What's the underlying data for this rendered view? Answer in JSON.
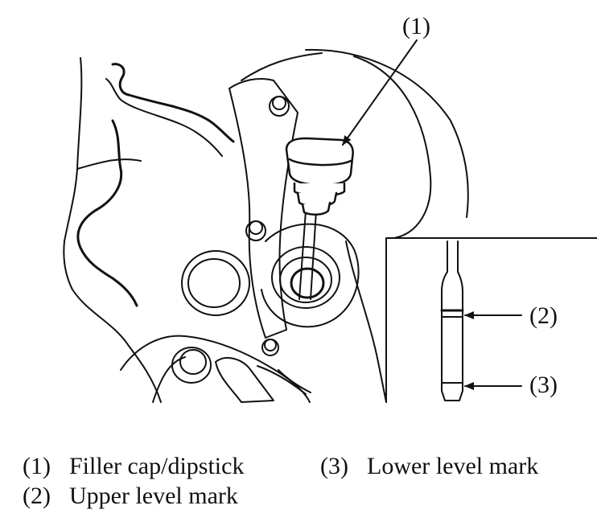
{
  "callouts": {
    "c1": "(1)",
    "c2": "(2)",
    "c3": "(3)"
  },
  "legend": {
    "item1": {
      "num": "(1)",
      "label": "Filler cap/dipstick"
    },
    "item2": {
      "num": "(2)",
      "label": "Upper level mark"
    },
    "item3": {
      "num": "(3)",
      "label": "Lower level mark"
    }
  },
  "colors": {
    "line": "#111111",
    "background": "#ffffff"
  }
}
